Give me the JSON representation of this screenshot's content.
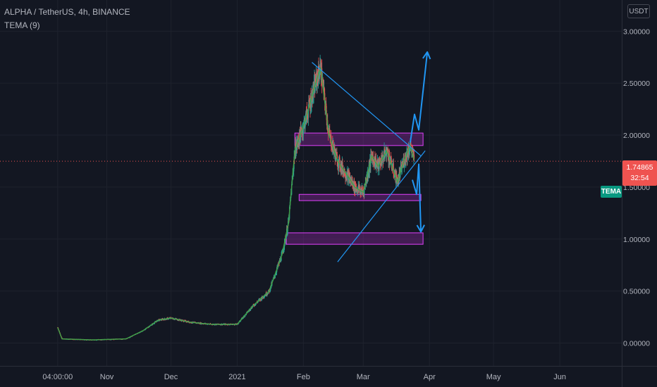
{
  "symbol_title": "ALPHA / TetherUS, 4h, BINANCE",
  "indicator_label": "TEMA (9)",
  "currency_button": "USDT",
  "last_price": "1.74865",
  "countdown": "32:54",
  "indicator_tag": "TEMA",
  "colors": {
    "background": "#131722",
    "grid": "#1e222d",
    "up": "#26a69a",
    "down": "#ef5350",
    "tema": "#43a047",
    "price_line": "#ef5350",
    "zone_fill": "#9c27b0",
    "zone_border": "#e040fb",
    "drawing": "#2196f3"
  },
  "chart_data": {
    "type": "candlestick",
    "y_axis": {
      "ticks": [
        "0.00000",
        "0.50000",
        "1.00000",
        "1.50000",
        "2.00000",
        "2.50000",
        "3.00000"
      ],
      "tick_values": [
        0,
        0.5,
        1.0,
        1.5,
        2.0,
        2.5,
        3.0
      ],
      "range": [
        -0.22,
        3.3
      ]
    },
    "x_axis": {
      "ticks": [
        "04:00:00",
        "Nov",
        "Dec",
        "2021",
        "Feb",
        "Mar",
        "Apr",
        "May",
        "Jun"
      ],
      "tick_dates": [
        "2020-10-09",
        "2020-11-01",
        "2020-12-01",
        "2021-01-01",
        "2021-02-01",
        "2021-03-01",
        "2021-04-01",
        "2021-05-01",
        "2021-06-01"
      ],
      "range": [
        "2020-09-12",
        "2021-06-30"
      ]
    },
    "last_price": 1.74865,
    "price_path": [
      [
        "2020-10-09",
        0.15
      ],
      [
        "2020-10-11",
        0.04
      ],
      [
        "2020-10-25",
        0.03
      ],
      [
        "2020-11-10",
        0.04
      ],
      [
        "2020-11-18",
        0.12
      ],
      [
        "2020-11-25",
        0.22
      ],
      [
        "2020-12-01",
        0.24
      ],
      [
        "2020-12-10",
        0.2
      ],
      [
        "2020-12-20",
        0.18
      ],
      [
        "2021-01-01",
        0.18
      ],
      [
        "2021-01-08",
        0.35
      ],
      [
        "2021-01-16",
        0.5
      ],
      [
        "2021-01-22",
        0.85
      ],
      [
        "2021-01-25",
        1.15
      ],
      [
        "2021-01-28",
        1.85
      ],
      [
        "2021-02-02",
        2.15
      ],
      [
        "2021-02-06",
        2.45
      ],
      [
        "2021-02-09",
        2.65
      ],
      [
        "2021-02-13",
        2.0
      ],
      [
        "2021-02-17",
        1.75
      ],
      [
        "2021-02-22",
        1.6
      ],
      [
        "2021-02-25",
        1.5
      ],
      [
        "2021-03-01",
        1.45
      ],
      [
        "2021-03-05",
        1.8
      ],
      [
        "2021-03-08",
        1.7
      ],
      [
        "2021-03-12",
        1.85
      ],
      [
        "2021-03-17",
        1.55
      ],
      [
        "2021-03-20",
        1.75
      ],
      [
        "2021-03-23",
        1.9
      ],
      [
        "2021-03-25",
        1.74865
      ]
    ],
    "zones": [
      {
        "from": "2021-01-28",
        "to": "2021-03-29",
        "low": 1.9,
        "high": 2.02
      },
      {
        "from": "2021-01-30",
        "to": "2021-03-28",
        "low": 1.37,
        "high": 1.43
      },
      {
        "from": "2021-01-24",
        "to": "2021-03-29",
        "low": 0.95,
        "high": 1.06
      }
    ],
    "trendlines": [
      {
        "from": [
          "2021-02-05",
          2.7
        ],
        "to": [
          "2021-03-28",
          1.8
        ]
      },
      {
        "from": [
          "2021-02-17",
          0.78
        ],
        "to": [
          "2021-03-30",
          1.85
        ]
      }
    ],
    "arrows": [
      {
        "points": [
          [
            "2021-03-23",
            1.93
          ],
          [
            "2021-03-25",
            2.2
          ],
          [
            "2021-03-27",
            2.05
          ],
          [
            "2021-03-31",
            2.8
          ]
        ]
      },
      {
        "points": [
          [
            "2021-03-24",
            1.57
          ],
          [
            "2021-03-26",
            1.43
          ],
          [
            "2021-03-27",
            1.72
          ],
          [
            "2021-03-28",
            1.07
          ]
        ]
      }
    ]
  }
}
